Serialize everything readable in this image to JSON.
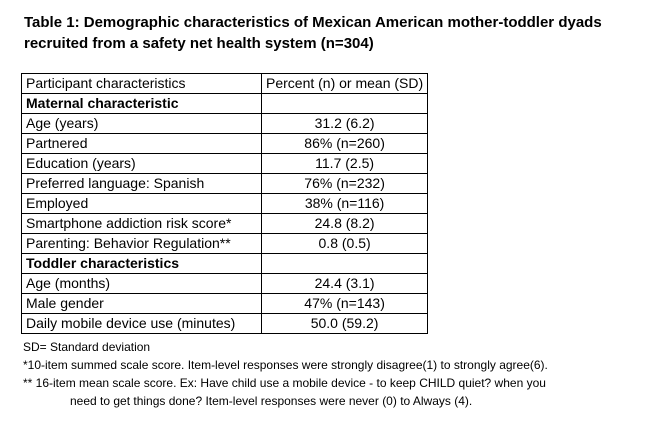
{
  "title": "Table 1: Demographic characteristics of Mexican American mother-toddler dyads recruited from a safety net health system (n=304)",
  "headers": [
    "Participant characteristics",
    "Percent (n) or mean (SD)"
  ],
  "sections": [
    {
      "label": "Maternal characteristic",
      "rows": [
        [
          "Age (years)",
          "31.2 (6.2)"
        ],
        [
          "Partnered",
          "86% (n=260)"
        ],
        [
          "Education (years)",
          "11.7 (2.5)"
        ],
        [
          "Preferred language: Spanish",
          "76% (n=232)"
        ],
        [
          "Employed",
          "38% (n=116)"
        ],
        [
          "Smartphone addiction risk score*",
          "24.8 (8.2)"
        ],
        [
          "Parenting: Behavior Regulation**",
          "0.8 (0.5)"
        ]
      ]
    },
    {
      "label": "Toddler characteristics",
      "rows": [
        [
          "Age (months)",
          "24.4 (3.1)"
        ],
        [
          "Male gender",
          "47% (n=143)"
        ],
        [
          "Daily mobile device use (minutes)",
          "50.0 (59.2)"
        ]
      ]
    }
  ],
  "notes": [
    "SD= Standard deviation",
    "*10-item summed scale score. Item-level responses were strongly disagree(1) to strongly agree(6).",
    "** 16-item mean scale score. Ex: Have child use a mobile device - to keep CHILD quiet? when you",
    "need to get things done? Item-level responses were never (0) to Always (4)."
  ]
}
